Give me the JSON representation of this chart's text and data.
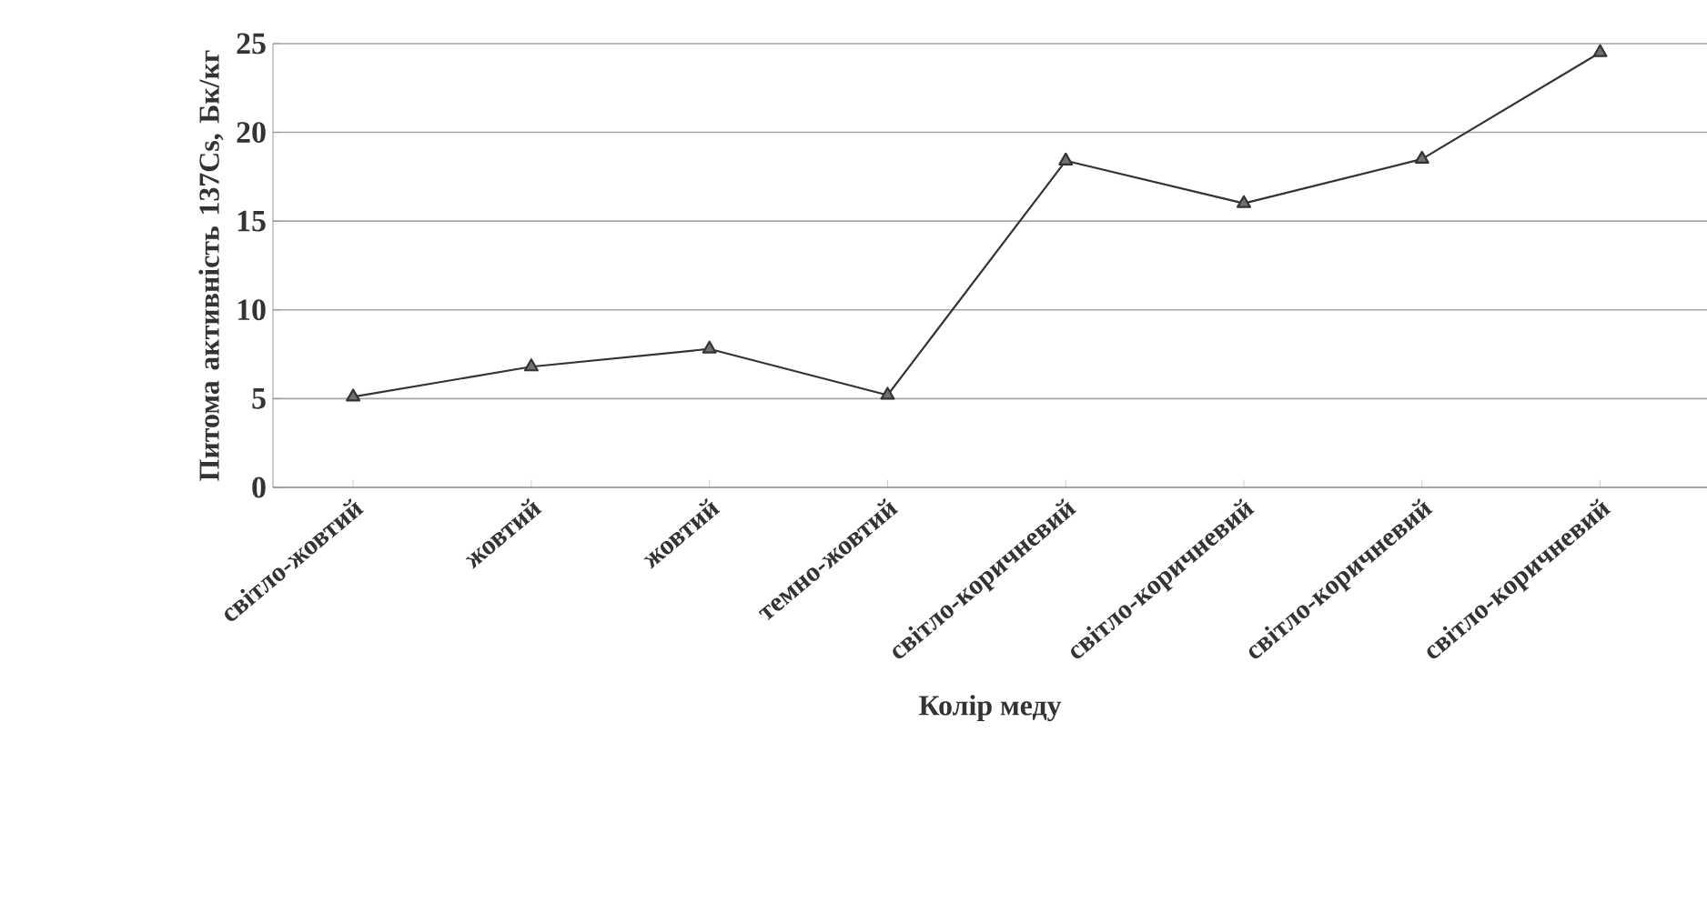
{
  "chart_data": {
    "type": "line",
    "xlabel": "Колір меду",
    "ylabel": "Питома активність 137Cs, Бк/кг",
    "categories": [
      "світло-жовтий",
      "жовтий",
      "жовтий",
      "темно-жовтий",
      "світло-коричневий",
      "світло-коричневий",
      "світло-коричневий",
      "світло-коричневий"
    ],
    "values": [
      5.1,
      6.8,
      7.8,
      5.2,
      18.4,
      16.0,
      18.5,
      24.5
    ],
    "color": "#333333",
    "ylim": [
      0,
      25
    ],
    "yticks": [
      0,
      5,
      10,
      15,
      20,
      25
    ],
    "grid": "y",
    "marker": "triangle",
    "line_style": "solid"
  }
}
